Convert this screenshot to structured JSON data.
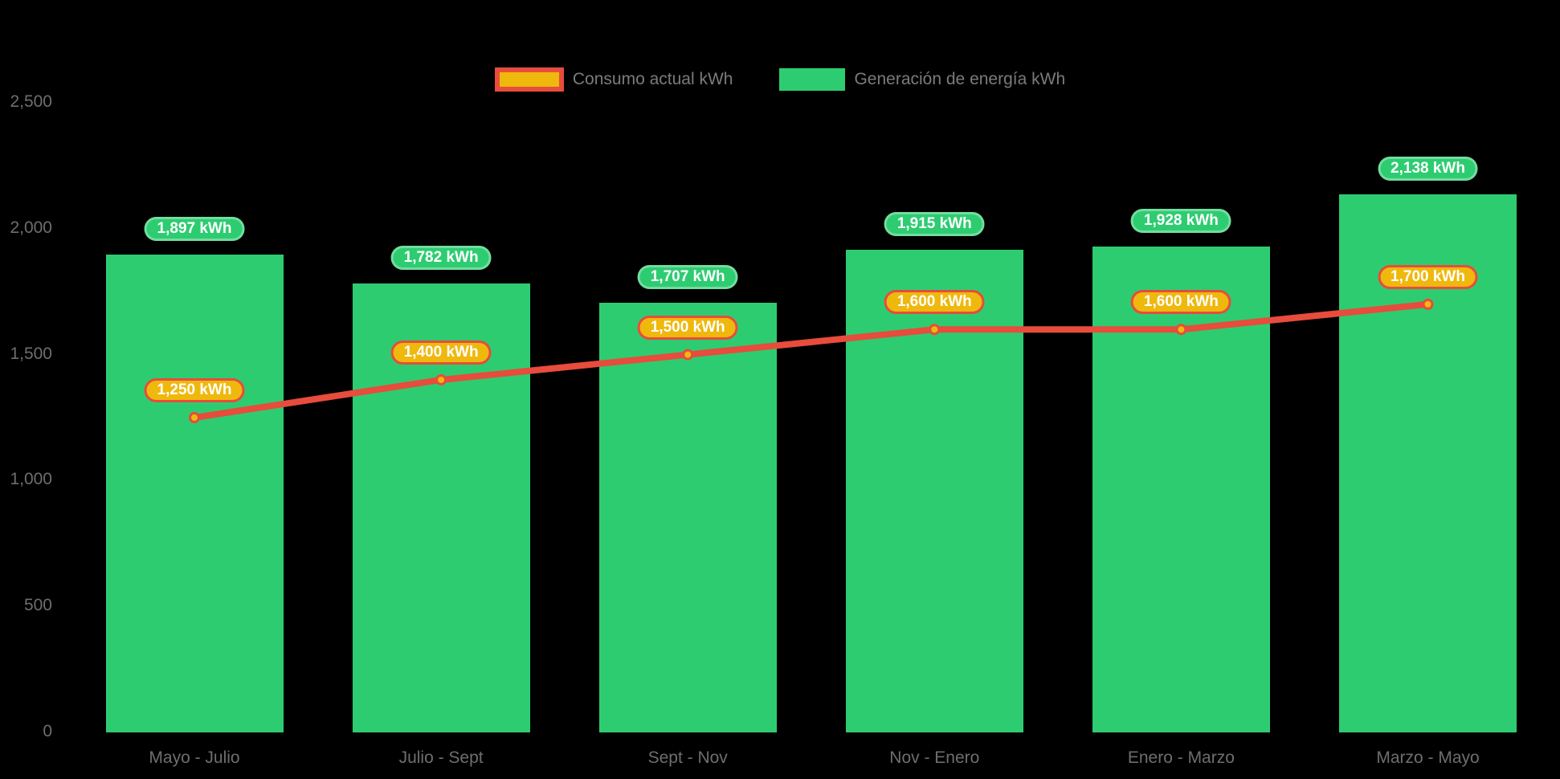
{
  "legend": {
    "items": [
      {
        "label": "Consumo actual kWh",
        "swatch_fill": "#EFB80D",
        "swatch_border": "#E74C3C"
      },
      {
        "label": "Generación de energía kWh",
        "swatch_fill": "#2ECC71"
      }
    ]
  },
  "chart_data": {
    "type": "bar",
    "subtype": "bar+line combo",
    "categories": [
      "Mayo - Julio",
      "Julio - Sept",
      "Sept - Nov",
      "Nov - Enero",
      "Enero - Marzo",
      "Marzo - Mayo"
    ],
    "series": [
      {
        "name": "Generación de energía kWh",
        "type": "bar",
        "values": [
          1897,
          1782,
          1707,
          1915,
          1928,
          2138
        ],
        "color": "#2ECC71",
        "label_style": "green pill above bar top"
      },
      {
        "name": "Consumo actual kWh",
        "type": "line",
        "values": [
          1250,
          1400,
          1500,
          1600,
          1600,
          1700
        ],
        "color": "#E74C3C",
        "point_fill": "#EFB80D",
        "point_border": "#E74C3C",
        "label_style": "gold pill above point"
      }
    ],
    "unit": "kWh",
    "ylim": [
      0,
      2500
    ],
    "yticks": [
      0,
      500,
      1000,
      1500,
      2000,
      2500
    ],
    "ytick_labels": [
      "0",
      "500",
      "1,000",
      "1,500",
      "2,000",
      "2,500"
    ],
    "grid": false,
    "legend_position": "top-center",
    "background": "#000000",
    "axis_text_color": "#6e6e6e"
  }
}
